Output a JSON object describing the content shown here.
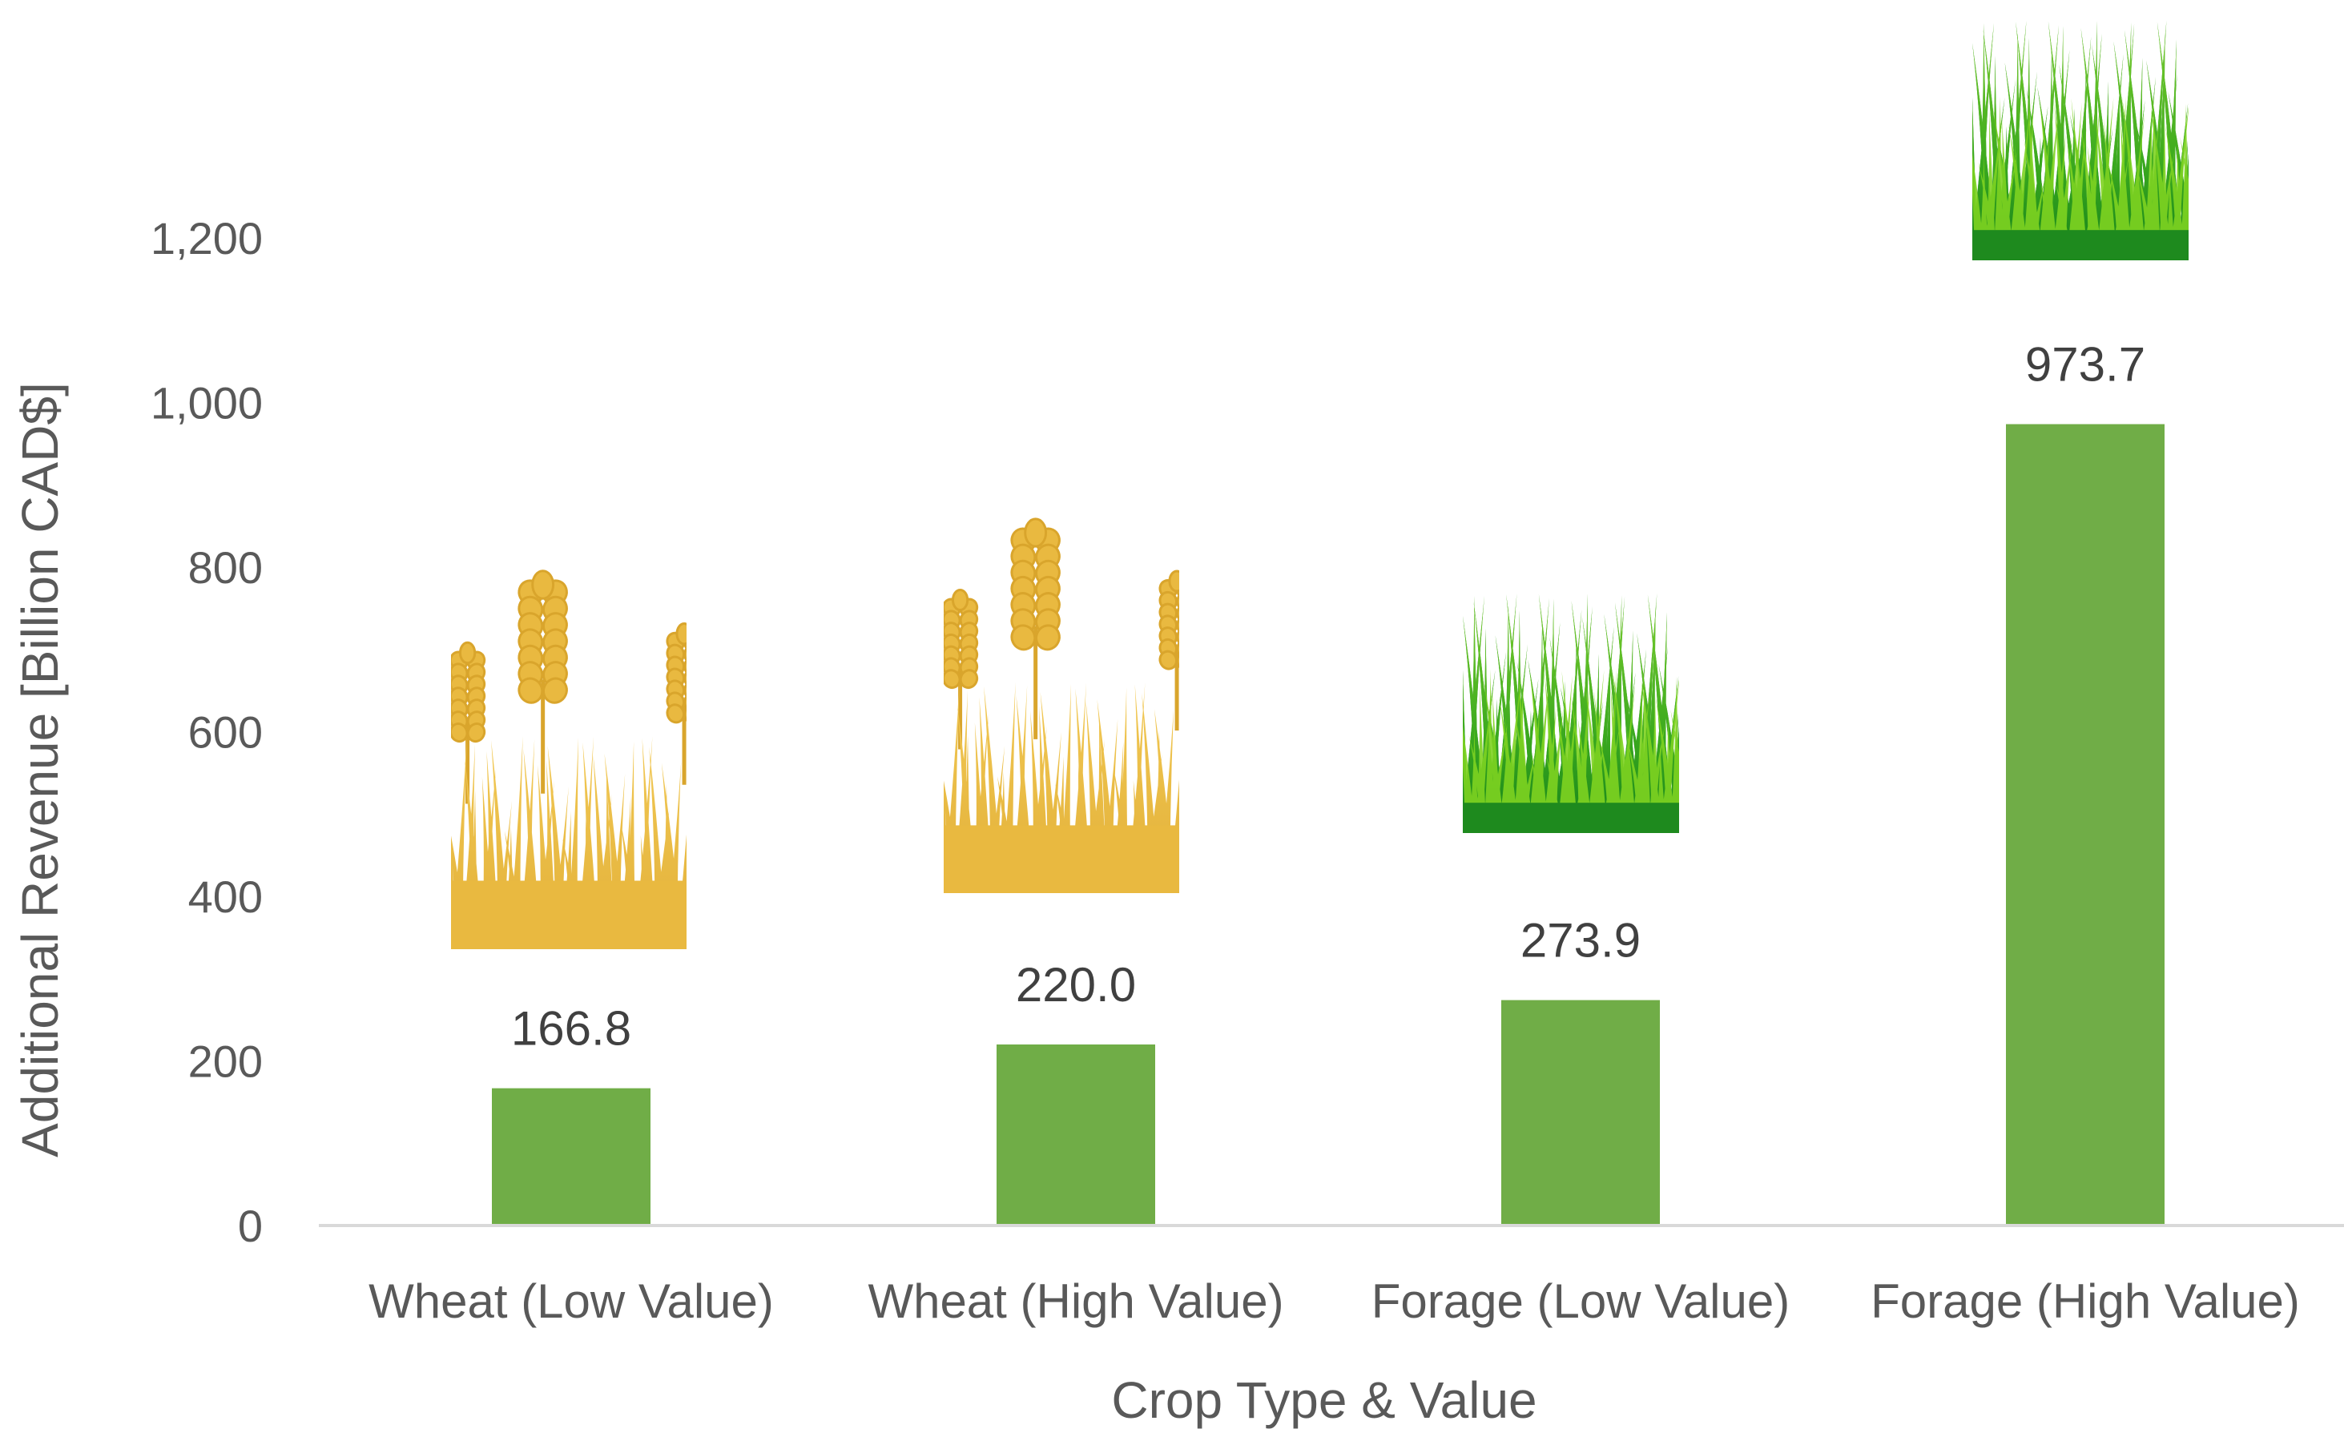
{
  "chart_data": {
    "type": "bar",
    "title": "",
    "xlabel": "Crop Type & Value",
    "ylabel": "Additional Revenue [Billion CAD$]",
    "categories": [
      "Wheat (Low Value)",
      "Wheat (High Value)",
      "Forage (Low Value)",
      "Forage (High Value)"
    ],
    "values": [
      166.8,
      220.0,
      273.9,
      973.7
    ],
    "value_labels": [
      "166.8",
      "220.0",
      "273.9",
      "973.7"
    ],
    "crop_images": [
      "wheat-illustration",
      "wheat-illustration",
      "grass-illustration",
      "grass-illustration"
    ],
    "ylim": [
      0,
      1300
    ],
    "yticks": [
      0,
      200,
      400,
      600,
      800,
      1000,
      1200
    ],
    "ytick_labels": [
      "0",
      "200",
      "400",
      "600",
      "800",
      "1,000",
      "1,200"
    ],
    "grid": false,
    "legend": "none"
  },
  "colors": {
    "bar": "#70AD47",
    "axis": "#D9D9D9",
    "text": "#595959",
    "label": "#404040",
    "wheat_stalk": "#E9B940",
    "wheat_dark": "#D9A52C",
    "grass_dark": "#1E8A1E",
    "grass_light": "#7ED321"
  }
}
